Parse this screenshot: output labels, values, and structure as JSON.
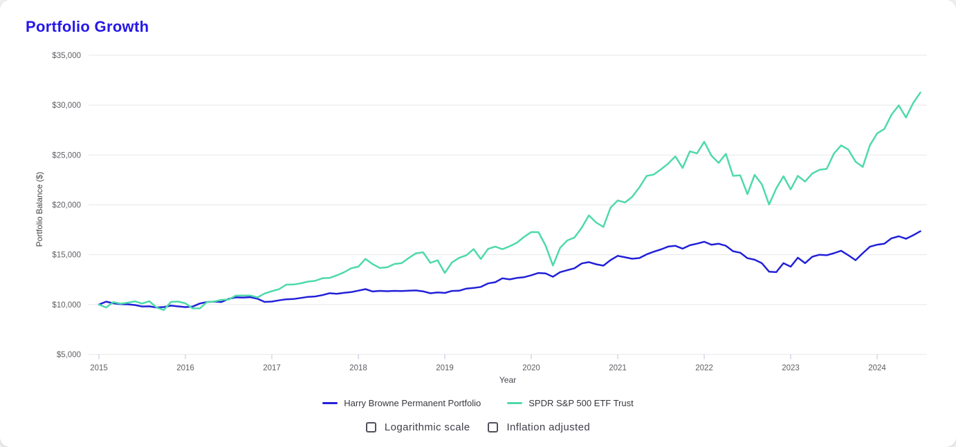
{
  "page": {
    "title": "Portfolio Growth"
  },
  "chart_data": {
    "type": "line",
    "title": "Portfolio Growth",
    "xlabel": "Year",
    "ylabel": "Portfolio Balance ($)",
    "grid": "horizontal",
    "legend_position": "bottom",
    "ylim": [
      5000,
      35000
    ],
    "y_tick_values": [
      5000,
      10000,
      15000,
      20000,
      25000,
      30000,
      35000
    ],
    "y_tick_labels": [
      "$5,000",
      "$10,000",
      "$15,000",
      "$20,000",
      "$25,000",
      "$30,000",
      "$35,000"
    ],
    "x_tick_labels": [
      "2015",
      "2016",
      "2017",
      "2018",
      "2019",
      "2020",
      "2021",
      "2022",
      "2023",
      "2024"
    ],
    "x_start_year": 2015,
    "points_per_year": 12,
    "x_note": "monthly values; point 0 = initial $10,000 at Jan 2015, last point = Jun 2024",
    "series": [
      {
        "name": "Harry Browne Permanent Portfolio",
        "color": "#2120d8",
        "values": [
          10000,
          10290,
          10125,
          10034,
          10024,
          9954,
          9805,
          9825,
          9707,
          9756,
          9893,
          9814,
          9745,
          9794,
          10107,
          10259,
          10290,
          10259,
          10567,
          10725,
          10693,
          10746,
          10585,
          10267,
          10298,
          10422,
          10526,
          10558,
          10663,
          10770,
          10813,
          10943,
          11140,
          11073,
          11172,
          11251,
          11397,
          11545,
          11314,
          11371,
          11337,
          11371,
          11360,
          11394,
          11417,
          11326,
          11133,
          11222,
          11166,
          11367,
          11390,
          11606,
          11664,
          11769,
          12122,
          12243,
          12635,
          12521,
          12671,
          12747,
          12938,
          13171,
          13118,
          12790,
          13250,
          13449,
          13637,
          14128,
          14254,
          14040,
          13900,
          14456,
          14890,
          14741,
          14594,
          14667,
          15033,
          15304,
          15533,
          15813,
          15892,
          15606,
          15949,
          16109,
          16302,
          16000,
          16100,
          15900,
          15350,
          15200,
          14650,
          14500,
          14150,
          13300,
          13250,
          14150,
          13800,
          14700,
          14150,
          14800,
          15000,
          14950,
          15150,
          15400,
          14950,
          14450,
          15150,
          15800,
          16000,
          16100,
          16650,
          16850,
          16600,
          16950,
          17350
        ]
      },
      {
        "name": "SPDR S&P 500 ETF Trust",
        "color": "#4ed9ab",
        "values": [
          10000,
          9704,
          10249,
          10088,
          10187,
          10318,
          10109,
          10337,
          9706,
          9458,
          10263,
          10301,
          10124,
          9620,
          9612,
          10258,
          10298,
          10473,
          10510,
          10894,
          10907,
          10908,
          10719,
          11113,
          11339,
          11542,
          11996,
          12011,
          12130,
          12301,
          12380,
          12635,
          12672,
          12927,
          13232,
          13637,
          13802,
          14580,
          14049,
          13664,
          13735,
          14069,
          14149,
          14675,
          15143,
          15233,
          14180,
          14442,
          13173,
          14228,
          14685,
          14951,
          15562,
          14569,
          15583,
          15818,
          15554,
          15846,
          16196,
          16783,
          17270,
          17263,
          15896,
          13915,
          15682,
          16429,
          16721,
          17706,
          18942,
          18234,
          17780,
          19714,
          20445,
          20237,
          20800,
          21744,
          22894,
          23045,
          23564,
          24139,
          24858,
          23700,
          25364,
          25161,
          26326,
          24939,
          24203,
          25113,
          22908,
          22961,
          21067,
          23007,
          22068,
          20029,
          21657,
          22868,
          21551,
          22907,
          22332,
          23151,
          23510,
          23611,
          25141,
          25963,
          25542,
          24332,
          23806,
          25980,
          27170,
          27605,
          29046,
          29978,
          28755,
          30210,
          31264
        ]
      }
    ]
  },
  "controls": {
    "logarithmic_label": "Logarithmic scale",
    "logarithmic_checked": false,
    "inflation_label": "Inflation adjusted",
    "inflation_checked": false
  }
}
